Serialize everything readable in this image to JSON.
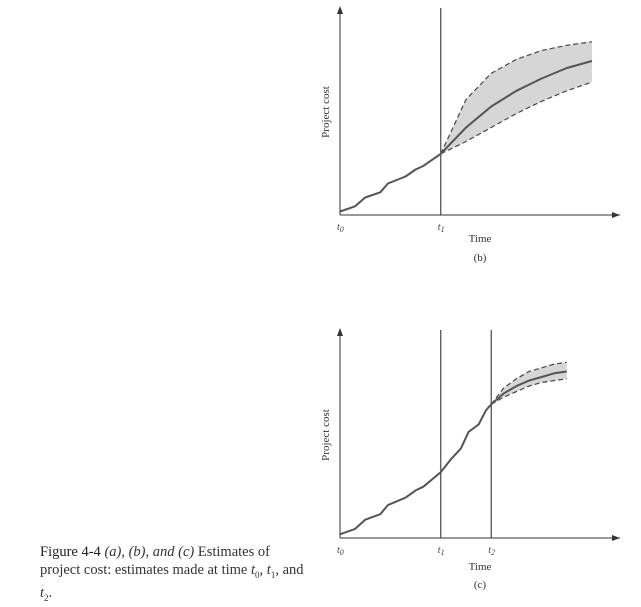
{
  "chart_data": [
    {
      "type": "line",
      "panel_label": "(b)",
      "xlabel": "Time",
      "ylabel": "Project cost",
      "x_ticks": [
        {
          "label": "t",
          "sub": "0",
          "x": 0
        },
        {
          "label": "t",
          "sub": "1",
          "x": 4
        }
      ],
      "xlim": [
        0,
        10
      ],
      "ylim": [
        0,
        10
      ],
      "actual": {
        "x": [
          0,
          0.6,
          1.0,
          1.6,
          1.9,
          2.6,
          3.0,
          3.3,
          4.0
        ],
        "y": [
          0.2,
          0.5,
          1.0,
          1.3,
          1.8,
          2.2,
          2.6,
          2.8,
          3.5
        ]
      },
      "estimate": {
        "x": [
          4.0,
          5.0,
          6.0,
          7.0,
          8.0,
          9.0,
          10.0
        ],
        "y": [
          3.5,
          5.0,
          6.2,
          7.1,
          7.8,
          8.4,
          8.8
        ]
      },
      "estimate_upper": {
        "x": [
          4.0,
          5.0,
          6.0,
          7.0,
          8.0,
          9.0,
          10.0
        ],
        "y": [
          3.5,
          6.6,
          8.1,
          8.9,
          9.4,
          9.7,
          9.9
        ]
      },
      "estimate_lower": {
        "x": [
          4.0,
          5.0,
          6.0,
          7.0,
          8.0,
          9.0,
          10.0
        ],
        "y": [
          3.5,
          4.2,
          5.0,
          5.8,
          6.5,
          7.1,
          7.6
        ]
      },
      "vertical_lines_at": [
        4
      ]
    },
    {
      "type": "line",
      "panel_label": "(c)",
      "xlabel": "Time",
      "ylabel": "Project cost",
      "x_ticks": [
        {
          "label": "t",
          "sub": "0",
          "x": 0
        },
        {
          "label": "t",
          "sub": "1",
          "x": 4
        },
        {
          "label": "t",
          "sub": "2",
          "x": 6
        }
      ],
      "xlim": [
        0,
        10
      ],
      "ylim": [
        0,
        10
      ],
      "actual": {
        "x": [
          0,
          0.6,
          1.0,
          1.6,
          1.9,
          2.6,
          3.0,
          3.3,
          4.0,
          4.4,
          4.8,
          5.1,
          5.5,
          5.8,
          6.0
        ],
        "y": [
          0.2,
          0.5,
          1.0,
          1.3,
          1.8,
          2.2,
          2.6,
          2.8,
          3.6,
          4.3,
          4.9,
          5.8,
          6.2,
          7.0,
          7.3
        ]
      },
      "estimate": {
        "x": [
          6.0,
          6.5,
          7.0,
          7.5,
          8.0,
          8.5,
          9.0
        ],
        "y": [
          7.3,
          7.9,
          8.3,
          8.6,
          8.8,
          9.0,
          9.1
        ]
      },
      "estimate_upper": {
        "x": [
          6.0,
          6.5,
          7.0,
          7.5,
          8.0,
          8.5,
          9.0
        ],
        "y": [
          7.3,
          8.2,
          8.7,
          9.1,
          9.3,
          9.5,
          9.6
        ]
      },
      "estimate_lower": {
        "x": [
          6.0,
          6.5,
          7.0,
          7.5,
          8.0,
          8.5,
          9.0
        ],
        "y": [
          7.3,
          7.7,
          8.0,
          8.3,
          8.5,
          8.6,
          8.7
        ]
      },
      "vertical_lines_at": [
        4,
        6
      ]
    }
  ],
  "caption": {
    "figure_number": "Figure 4-4",
    "parts": [
      {
        "t": "(a), (b), and (c)",
        "italic": true
      },
      {
        "t": "  Estimates of project cost: estimates made at time "
      },
      {
        "t": "t",
        "italic": true
      },
      {
        "t": "0",
        "sub": true
      },
      {
        "t": ", "
      },
      {
        "t": "t",
        "italic": true
      },
      {
        "t": "1",
        "sub": true
      },
      {
        "t": ", and "
      },
      {
        "t": "t",
        "italic": true
      },
      {
        "t": "2",
        "sub": true
      },
      {
        "t": "."
      }
    ]
  }
}
